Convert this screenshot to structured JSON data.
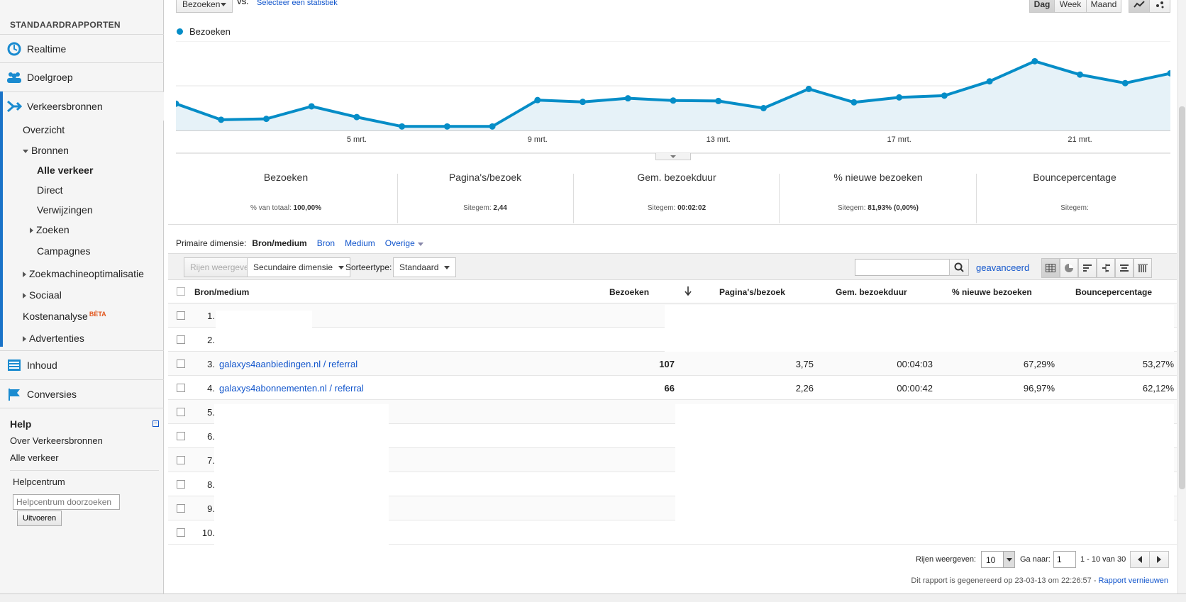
{
  "sidebar": {
    "heading": "STANDAARDRAPPORTEN",
    "realtime": "Realtime",
    "doelgroep": "Doelgroep",
    "verkeersbronnen": "Verkeersbronnen",
    "overzicht": "Overzicht",
    "bronnen": "Bronnen",
    "alle_verkeer": "Alle verkeer",
    "direct": "Direct",
    "verwijzingen": "Verwijzingen",
    "zoeken": "Zoeken",
    "campagnes": "Campagnes",
    "zoekmachineoptimalisatie": "Zoekmachineoptimalisatie",
    "sociaal": "Sociaal",
    "kostenanalyse": "Kostenanalyse",
    "beta": "BÈTA",
    "advertenties": "Advertenties",
    "inhoud": "Inhoud",
    "conversies": "Conversies",
    "help": {
      "title": "Help",
      "over": "Over Verkeersbronnen",
      "alle": "Alle verkeer",
      "helpcentrum": "Helpcentrum",
      "search_placeholder": "Helpcentrum doorzoeken",
      "run": "Uitvoeren"
    }
  },
  "top": {
    "metric_select": "Bezoeken",
    "vs": "VS.",
    "select_stat": "Selecteer een statistiek",
    "periods": [
      "Dag",
      "Week",
      "Maand"
    ],
    "active_period": "Dag"
  },
  "chart_data": {
    "type": "area",
    "series": [
      {
        "name": "Bezoeken",
        "values": [
          60,
          24,
          26,
          54,
          30,
          9,
          9,
          9,
          68,
          64,
          72,
          67,
          66,
          50,
          93,
          63,
          74,
          78,
          110,
          155,
          125,
          106,
          128
        ]
      }
    ],
    "x_tick_labels": [
      "5 mrt.",
      "9 mrt.",
      "13 mrt.",
      "17 mrt.",
      "21 mrt."
    ],
    "x_tick_index": [
      4,
      8,
      12,
      16,
      20
    ],
    "ylim": [
      0,
      200
    ],
    "color": "#058dc7",
    "fill": "#e6f2f8"
  },
  "scorecards": [
    {
      "title": "Bezoeken",
      "sub_label": "% van totaal:",
      "sub_value": "100,00%"
    },
    {
      "title": "Pagina's/bezoek",
      "sub_label": "Sitegem:",
      "sub_value": "2,44"
    },
    {
      "title": "Gem. bezoekduur",
      "sub_label": "Sitegem:",
      "sub_value": "00:02:02"
    },
    {
      "title": "% nieuwe bezoeken",
      "sub_label": "Sitegem:",
      "sub_value": "81,93% (0,00%)"
    },
    {
      "title": "Bouncepercentage",
      "sub_label": "Sitegem:",
      "sub_value": ""
    }
  ],
  "dimensions": {
    "label": "Primaire dimensie:",
    "active": "Bron/medium",
    "options": [
      "Bron",
      "Medium",
      "Overige"
    ]
  },
  "toolbar": {
    "rows_btn": "Rijen weergeven",
    "secondary": "Secundaire dimensie",
    "sort_label": "Sorteertype:",
    "sort_value": "Standaard",
    "advanced": "geavanceerd"
  },
  "table": {
    "headers": [
      "Bron/medium",
      "Bezoeken",
      "Pagina's/bezoek",
      "Gem. bezoekduur",
      "% nieuwe bezoeken",
      "Bouncepercentage"
    ],
    "rows": [
      {
        "n": "1.",
        "src": "",
        "visits": "",
        "ppv": "",
        "dur": "",
        "new": "",
        "bounce": ""
      },
      {
        "n": "2.",
        "src": "",
        "visits": "",
        "ppv": "",
        "dur": "",
        "new": "",
        "bounce": ""
      },
      {
        "n": "3.",
        "src": "galaxys4aanbiedingen.nl / referral",
        "visits": "107",
        "ppv": "3,75",
        "dur": "00:04:03",
        "new": "67,29%",
        "bounce": "53,27%"
      },
      {
        "n": "4.",
        "src": "galaxys4abonnementen.nl / referral",
        "visits": "66",
        "ppv": "2,26",
        "dur": "00:00:42",
        "new": "96,97%",
        "bounce": "62,12%"
      },
      {
        "n": "5.",
        "src": "",
        "visits": "",
        "ppv": "",
        "dur": "",
        "new": "",
        "bounce": ""
      },
      {
        "n": "6.",
        "src": "",
        "visits": "",
        "ppv": "",
        "dur": "",
        "new": "",
        "bounce": ""
      },
      {
        "n": "7.",
        "src": "",
        "visits": "",
        "ppv": "",
        "dur": "",
        "new": "",
        "bounce": ""
      },
      {
        "n": "8.",
        "src": "",
        "visits": "",
        "ppv": "",
        "dur": "",
        "new": "",
        "bounce": ""
      },
      {
        "n": "9.",
        "src": "",
        "visits": "",
        "ppv": "",
        "dur": "",
        "new": "",
        "bounce": ""
      },
      {
        "n": "10.",
        "src": "",
        "visits": "",
        "ppv": "",
        "dur": "",
        "new": "",
        "bounce": ""
      }
    ]
  },
  "footer": {
    "rows_label": "Rijen weergeven:",
    "rows_value": "10",
    "goto_label": "Ga naar:",
    "goto_value": "1",
    "range": "1 - 10 van 30",
    "generated": "Dit rapport is gegenereerd op 23-03-13 om 22:26:57 -",
    "refresh": "Rapport vernieuwen"
  }
}
